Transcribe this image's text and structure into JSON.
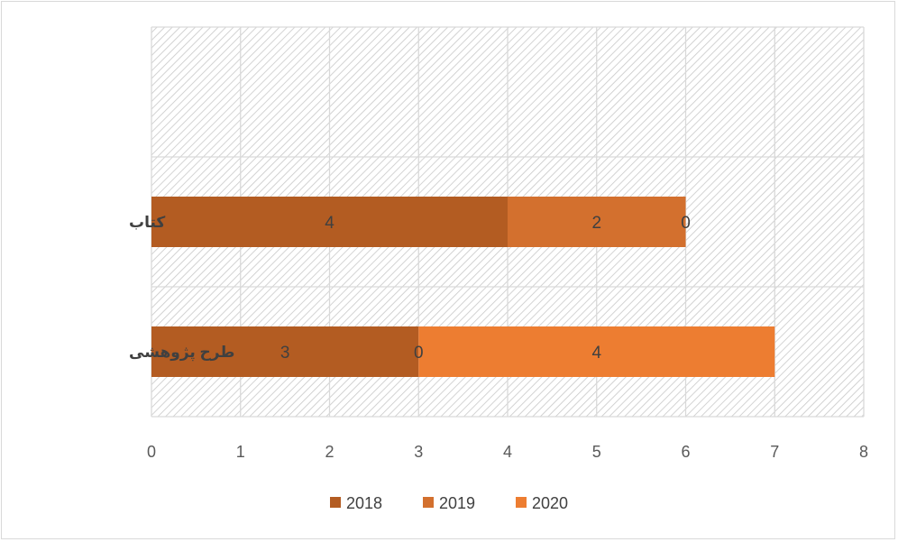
{
  "chart_data": {
    "type": "bar",
    "orientation": "horizontal",
    "stacked": true,
    "categories": [
      "",
      "کتاب",
      "طرح پژوهشی"
    ],
    "series": [
      {
        "name": "2018",
        "values": [
          null,
          4,
          3
        ],
        "color": "#b35c22"
      },
      {
        "name": "2019",
        "values": [
          null,
          2,
          0
        ],
        "color": "#d3702e"
      },
      {
        "name": "2020",
        "values": [
          null,
          0,
          4
        ],
        "color": "#ed7d31"
      }
    ],
    "xlim": [
      0,
      8
    ],
    "xticks": [
      "0",
      "1",
      "2",
      "3",
      "4",
      "5",
      "6",
      "7",
      "8"
    ],
    "grid": true,
    "plot_background": "hatched-gray",
    "legend_position": "bottom",
    "title": "",
    "xlabel": "",
    "ylabel": ""
  }
}
